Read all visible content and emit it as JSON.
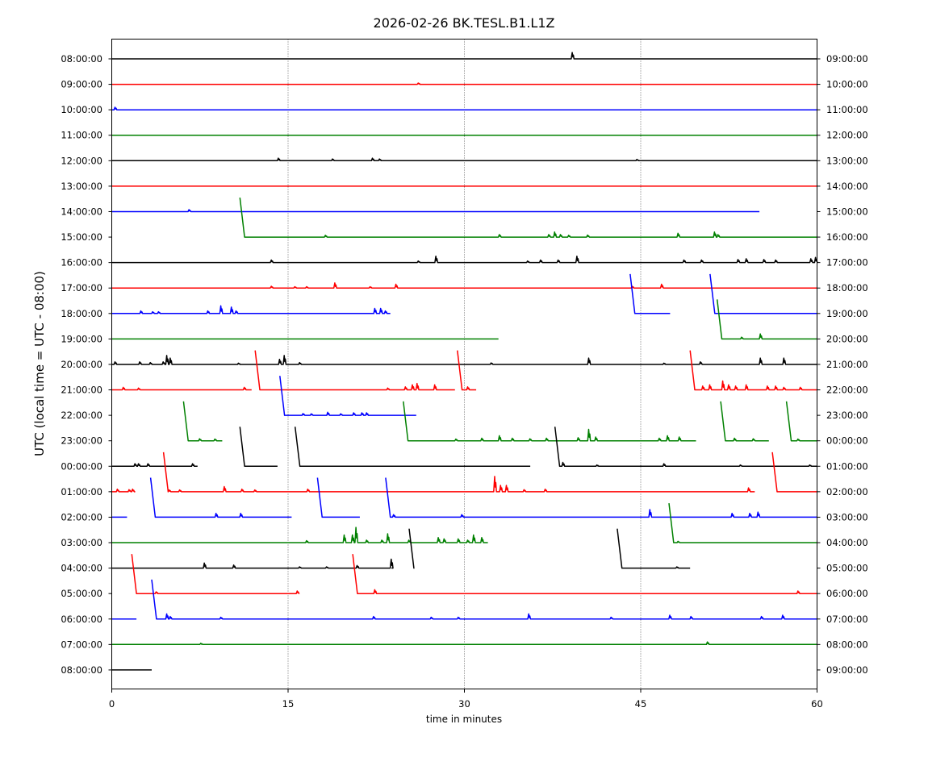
{
  "chart_data": {
    "type": "line",
    "title": "2026-02-26 BK.TESL.B1.L1Z",
    "xlabel": "time in minutes",
    "ylabel": "UTC (local time = UTC - 08:00)",
    "xlim": [
      0,
      60
    ],
    "xticks": [
      0,
      15,
      30,
      45,
      60
    ],
    "grid": "vertical dotted at 15, 30, 45",
    "colors": [
      "#000000",
      "#ff0000",
      "#0000ff",
      "#008000"
    ],
    "ramp": {
      "rise_rows": 1.55,
      "width_min": 0.4
    },
    "rows": [
      {
        "left": "08:00:00",
        "right": "09:00:00",
        "segs": [
          [
            0,
            60,
            0
          ]
        ],
        "spikes": [
          [
            39.2,
            0.25
          ]
        ]
      },
      {
        "left": "09:00:00",
        "right": "10:00:00",
        "segs": [
          [
            0,
            60,
            0
          ]
        ],
        "spikes": [
          [
            26.1,
            0.05
          ]
        ]
      },
      {
        "left": "10:00:00",
        "right": "11:00:00",
        "segs": [
          [
            0,
            60,
            0
          ]
        ],
        "spikes": [
          [
            0.3,
            0.1
          ]
        ]
      },
      {
        "left": "11:00:00",
        "right": "12:00:00",
        "segs": [
          [
            0,
            60,
            0
          ]
        ],
        "spikes": []
      },
      {
        "left": "12:00:00",
        "right": "13:00:00",
        "segs": [
          [
            0,
            60,
            0
          ]
        ],
        "spikes": [
          [
            14.2,
            0.1
          ],
          [
            18.8,
            0.07
          ],
          [
            22.2,
            0.1
          ],
          [
            22.8,
            0.07
          ],
          [
            44.7,
            0.05
          ]
        ]
      },
      {
        "left": "13:00:00",
        "right": "14:00:00",
        "segs": [
          [
            0,
            60,
            0
          ]
        ],
        "spikes": []
      },
      {
        "left": "14:00:00",
        "right": "15:00:00",
        "segs": [
          [
            0,
            55.1,
            0
          ]
        ],
        "spikes": [
          [
            6.6,
            0.08
          ]
        ]
      },
      {
        "left": "15:00:00",
        "right": "16:00:00",
        "segs": [
          [
            10.9,
            60,
            1
          ]
        ],
        "spikes": [
          [
            18.2,
            0.07
          ],
          [
            33.0,
            0.1
          ],
          [
            37.2,
            0.1
          ],
          [
            37.7,
            0.2
          ],
          [
            38.2,
            0.1
          ],
          [
            38.9,
            0.07
          ],
          [
            40.5,
            0.08
          ],
          [
            48.2,
            0.15
          ],
          [
            51.3,
            0.2
          ],
          [
            51.6,
            0.1
          ]
        ]
      },
      {
        "left": "16:00:00",
        "right": "17:00:00",
        "segs": [
          [
            0,
            60,
            0
          ]
        ],
        "spikes": [
          [
            13.6,
            0.1
          ],
          [
            26.1,
            0.06
          ],
          [
            27.6,
            0.25
          ],
          [
            35.4,
            0.06
          ],
          [
            36.5,
            0.1
          ],
          [
            38.0,
            0.1
          ],
          [
            39.6,
            0.25
          ],
          [
            48.7,
            0.1
          ],
          [
            50.2,
            0.1
          ],
          [
            53.3,
            0.12
          ],
          [
            54.0,
            0.15
          ],
          [
            55.5,
            0.12
          ],
          [
            56.5,
            0.1
          ],
          [
            59.5,
            0.15
          ],
          [
            59.9,
            0.2
          ]
        ]
      },
      {
        "left": "17:00:00",
        "right": "18:00:00",
        "segs": [
          [
            0,
            60,
            0
          ]
        ],
        "spikes": [
          [
            13.6,
            0.07
          ],
          [
            15.6,
            0.05
          ],
          [
            16.6,
            0.05
          ],
          [
            19.0,
            0.2
          ],
          [
            22.0,
            0.05
          ],
          [
            24.2,
            0.15
          ],
          [
            44.3,
            0.07
          ],
          [
            46.8,
            0.15
          ]
        ]
      },
      {
        "left": "18:00:00",
        "right": "19:00:00",
        "segs": [
          [
            0,
            23.7,
            0
          ],
          [
            44.1,
            47.5,
            1
          ],
          [
            50.9,
            60,
            1
          ]
        ],
        "spikes": [
          [
            2.5,
            0.1
          ],
          [
            3.5,
            0.07
          ],
          [
            4.0,
            0.07
          ],
          [
            8.2,
            0.1
          ],
          [
            9.3,
            0.3
          ],
          [
            10.2,
            0.25
          ],
          [
            10.6,
            0.1
          ],
          [
            22.4,
            0.2
          ],
          [
            22.9,
            0.2
          ],
          [
            23.3,
            0.1
          ]
        ]
      },
      {
        "left": "19:00:00",
        "right": "20:00:00",
        "segs": [
          [
            0,
            32.9,
            0
          ],
          [
            51.5,
            60,
            1
          ]
        ],
        "spikes": [
          [
            53.6,
            0.07
          ],
          [
            55.2,
            0.2
          ]
        ]
      },
      {
        "left": "20:00:00",
        "right": "21:00:00",
        "segs": [
          [
            0,
            60,
            0
          ]
        ],
        "spikes": [
          [
            0.3,
            0.1
          ],
          [
            2.4,
            0.1
          ],
          [
            3.3,
            0.07
          ],
          [
            4.4,
            0.1
          ],
          [
            4.7,
            0.35
          ],
          [
            5.0,
            0.25
          ],
          [
            10.8,
            0.05
          ],
          [
            14.3,
            0.2
          ],
          [
            14.7,
            0.35
          ],
          [
            16.0,
            0.07
          ],
          [
            32.3,
            0.06
          ],
          [
            40.6,
            0.25
          ],
          [
            47.0,
            0.05
          ],
          [
            50.1,
            0.1
          ],
          [
            55.2,
            0.25
          ],
          [
            57.2,
            0.25
          ]
        ]
      },
      {
        "left": "21:00:00",
        "right": "22:00:00",
        "segs": [
          [
            0,
            11.9,
            0
          ],
          [
            12.2,
            29.2,
            1
          ],
          [
            29.4,
            31.0,
            1
          ],
          [
            49.2,
            60,
            1
          ]
        ],
        "spikes": [
          [
            1.0,
            0.1
          ],
          [
            2.3,
            0.07
          ],
          [
            11.3,
            0.1
          ],
          [
            23.5,
            0.07
          ],
          [
            25.0,
            0.12
          ],
          [
            25.6,
            0.2
          ],
          [
            26.0,
            0.25
          ],
          [
            27.5,
            0.2
          ],
          [
            30.3,
            0.12
          ],
          [
            50.3,
            0.15
          ],
          [
            50.9,
            0.2
          ],
          [
            52.0,
            0.35
          ],
          [
            52.5,
            0.2
          ],
          [
            53.1,
            0.15
          ],
          [
            54.0,
            0.2
          ],
          [
            55.8,
            0.15
          ],
          [
            56.5,
            0.15
          ],
          [
            57.2,
            0.1
          ],
          [
            58.6,
            0.1
          ]
        ]
      },
      {
        "left": "22:00:00",
        "right": "23:00:00",
        "segs": [
          [
            14.3,
            25.9,
            1
          ]
        ],
        "spikes": [
          [
            16.3,
            0.07
          ],
          [
            17.0,
            0.06
          ],
          [
            18.4,
            0.12
          ],
          [
            19.5,
            0.06
          ],
          [
            20.6,
            0.1
          ],
          [
            21.3,
            0.1
          ],
          [
            21.7,
            0.1
          ]
        ]
      },
      {
        "left": "23:00:00",
        "right": "00:00:00",
        "segs": [
          [
            6.1,
            9.4,
            1
          ],
          [
            24.8,
            49.7,
            1
          ],
          [
            51.8,
            55.9,
            1
          ],
          [
            57.4,
            60,
            1
          ]
        ],
        "spikes": [
          [
            7.5,
            0.08
          ],
          [
            8.8,
            0.07
          ],
          [
            29.3,
            0.07
          ],
          [
            31.5,
            0.1
          ],
          [
            33.0,
            0.2
          ],
          [
            34.1,
            0.1
          ],
          [
            35.6,
            0.08
          ],
          [
            37.0,
            0.1
          ],
          [
            39.7,
            0.12
          ],
          [
            40.6,
            0.45
          ],
          [
            41.2,
            0.15
          ],
          [
            46.6,
            0.1
          ],
          [
            47.3,
            0.2
          ],
          [
            48.3,
            0.15
          ],
          [
            53.0,
            0.1
          ],
          [
            54.6,
            0.08
          ],
          [
            58.4,
            0.07
          ]
        ]
      },
      {
        "left": "00:00:00",
        "right": "01:00:00",
        "segs": [
          [
            0,
            7.3,
            0
          ],
          [
            10.9,
            14.1,
            1
          ],
          [
            15.6,
            35.6,
            1
          ],
          [
            37.7,
            60,
            1
          ]
        ],
        "spikes": [
          [
            2.0,
            0.1
          ],
          [
            2.3,
            0.1
          ],
          [
            3.1,
            0.1
          ],
          [
            6.9,
            0.1
          ],
          [
            38.4,
            0.15
          ],
          [
            41.3,
            0.05
          ],
          [
            47.0,
            0.1
          ],
          [
            53.5,
            0.05
          ],
          [
            59.4,
            0.05
          ]
        ]
      },
      {
        "left": "01:00:00",
        "right": "02:00:00",
        "segs": [
          [
            0,
            2.0,
            0
          ],
          [
            4.4,
            54.7,
            1
          ],
          [
            56.2,
            60,
            1
          ]
        ],
        "spikes": [
          [
            0.5,
            0.1
          ],
          [
            1.5,
            0.08
          ],
          [
            1.8,
            0.1
          ],
          [
            4.9,
            0.07
          ],
          [
            5.8,
            0.07
          ],
          [
            9.6,
            0.2
          ],
          [
            11.1,
            0.1
          ],
          [
            12.2,
            0.07
          ],
          [
            16.7,
            0.1
          ],
          [
            32.6,
            0.6
          ],
          [
            33.1,
            0.25
          ],
          [
            33.6,
            0.25
          ],
          [
            35.1,
            0.08
          ],
          [
            36.9,
            0.1
          ],
          [
            54.2,
            0.15
          ]
        ]
      },
      {
        "left": "02:00:00",
        "right": "03:00:00",
        "segs": [
          [
            0,
            1.3,
            0
          ],
          [
            3.3,
            15.3,
            1
          ],
          [
            17.5,
            21.1,
            1
          ],
          [
            23.3,
            60,
            1
          ]
        ],
        "spikes": [
          [
            8.9,
            0.15
          ],
          [
            11.0,
            0.15
          ],
          [
            24.0,
            0.1
          ],
          [
            29.8,
            0.1
          ],
          [
            45.8,
            0.3
          ],
          [
            52.8,
            0.15
          ],
          [
            54.3,
            0.15
          ],
          [
            55.0,
            0.2
          ]
        ]
      },
      {
        "left": "03:00:00",
        "right": "04:00:00",
        "segs": [
          [
            0,
            32.0,
            0
          ],
          [
            47.4,
            60,
            1
          ]
        ],
        "spikes": [
          [
            16.6,
            0.08
          ],
          [
            19.8,
            0.3
          ],
          [
            20.5,
            0.3
          ],
          [
            20.8,
            0.6
          ],
          [
            21.7,
            0.1
          ],
          [
            23.0,
            0.1
          ],
          [
            23.5,
            0.35
          ],
          [
            25.3,
            0.1
          ],
          [
            27.8,
            0.2
          ],
          [
            28.3,
            0.15
          ],
          [
            29.5,
            0.15
          ],
          [
            30.3,
            0.1
          ],
          [
            30.8,
            0.3
          ],
          [
            31.5,
            0.2
          ],
          [
            48.2,
            0.05
          ]
        ]
      },
      {
        "left": "04:00:00",
        "right": "05:00:00",
        "segs": [
          [
            0,
            23.8,
            0
          ],
          [
            25.3,
            25.75,
            1
          ],
          [
            43.0,
            49.2,
            1
          ]
        ],
        "spikes": [
          [
            7.9,
            0.2
          ],
          [
            10.4,
            0.12
          ],
          [
            16.0,
            0.05
          ],
          [
            18.3,
            0.05
          ],
          [
            20.9,
            0.1
          ],
          [
            23.8,
            0.35
          ],
          [
            48.1,
            0.05
          ]
        ]
      },
      {
        "left": "05:00:00",
        "right": "06:00:00",
        "segs": [
          [
            1.7,
            15.9,
            1
          ],
          [
            20.5,
            60,
            1
          ]
        ],
        "spikes": [
          [
            3.8,
            0.07
          ],
          [
            15.8,
            0.1
          ],
          [
            22.4,
            0.15
          ],
          [
            58.4,
            0.1
          ]
        ]
      },
      {
        "left": "06:00:00",
        "right": "07:00:00",
        "segs": [
          [
            0,
            2.1,
            0
          ],
          [
            3.4,
            60,
            1
          ]
        ],
        "spikes": [
          [
            4.7,
            0.2
          ],
          [
            5.0,
            0.1
          ],
          [
            9.3,
            0.07
          ],
          [
            22.3,
            0.1
          ],
          [
            27.2,
            0.07
          ],
          [
            29.5,
            0.07
          ],
          [
            35.5,
            0.2
          ],
          [
            42.5,
            0.07
          ],
          [
            47.5,
            0.15
          ],
          [
            49.3,
            0.1
          ],
          [
            55.3,
            0.1
          ],
          [
            57.1,
            0.15
          ]
        ]
      },
      {
        "left": "07:00:00",
        "right": "08:00:00",
        "segs": [
          [
            0,
            60,
            0
          ]
        ],
        "spikes": [
          [
            7.6,
            0.05
          ],
          [
            50.7,
            0.1
          ]
        ]
      },
      {
        "left": "08:00:00",
        "right": "09:00:00",
        "segs": [
          [
            0,
            3.4,
            0
          ]
        ],
        "spikes": []
      }
    ]
  }
}
